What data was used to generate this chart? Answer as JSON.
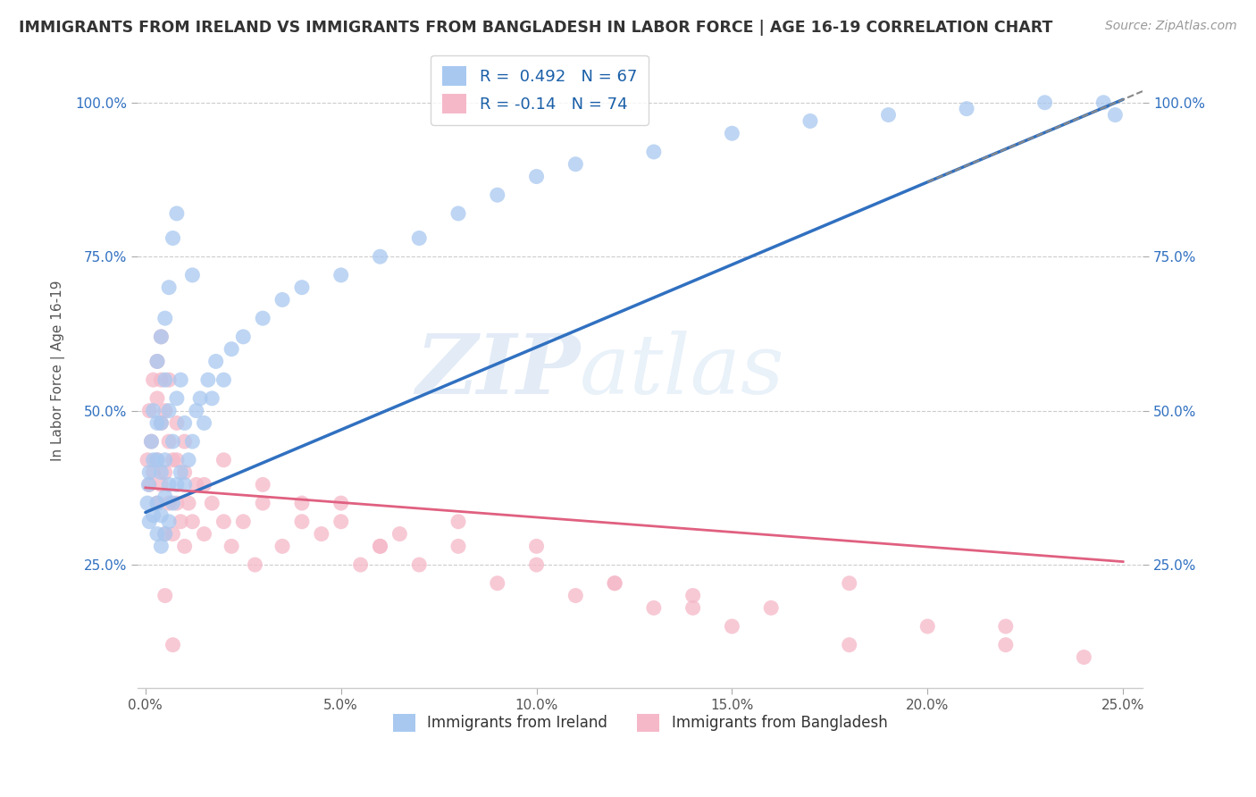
{
  "title": "IMMIGRANTS FROM IRELAND VS IMMIGRANTS FROM BANGLADESH IN LABOR FORCE | AGE 16-19 CORRELATION CHART",
  "source": "Source: ZipAtlas.com",
  "ylabel": "In Labor Force | Age 16-19",
  "xlabel_ireland": "Immigrants from Ireland",
  "xlabel_bangladesh": "Immigrants from Bangladesh",
  "xlim": [
    -0.002,
    0.255
  ],
  "ylim": [
    0.05,
    1.08
  ],
  "xticks": [
    0.0,
    0.05,
    0.1,
    0.15,
    0.2,
    0.25
  ],
  "yticks": [
    0.25,
    0.5,
    0.75,
    1.0
  ],
  "ytick_labels": [
    "25.0%",
    "50.0%",
    "75.0%",
    "100.0%"
  ],
  "xtick_labels": [
    "0.0%",
    "5.0%",
    "10.0%",
    "15.0%",
    "20.0%",
    "25.0%"
  ],
  "ireland_color": "#a8c8f0",
  "bangladesh_color": "#f5b8c8",
  "ireland_R": 0.492,
  "ireland_N": 67,
  "bangladesh_R": -0.14,
  "bangladesh_N": 74,
  "ireland_trend_color": "#3070c0",
  "bangladesh_trend_color": "#e06080",
  "background_color": "#ffffff",
  "grid_color": "#cccccc",
  "watermark_zip": "ZIP",
  "watermark_atlas": "atlas",
  "ireland_scatter_x": [
    0.0005,
    0.0008,
    0.001,
    0.001,
    0.0015,
    0.002,
    0.002,
    0.002,
    0.003,
    0.003,
    0.003,
    0.003,
    0.004,
    0.004,
    0.004,
    0.004,
    0.005,
    0.005,
    0.005,
    0.005,
    0.006,
    0.006,
    0.006,
    0.007,
    0.007,
    0.008,
    0.008,
    0.009,
    0.009,
    0.01,
    0.01,
    0.011,
    0.012,
    0.013,
    0.014,
    0.015,
    0.016,
    0.017,
    0.018,
    0.02,
    0.022,
    0.025,
    0.03,
    0.035,
    0.04,
    0.05,
    0.06,
    0.07,
    0.08,
    0.09,
    0.1,
    0.11,
    0.13,
    0.15,
    0.17,
    0.19,
    0.21,
    0.23,
    0.245,
    0.248,
    0.003,
    0.004,
    0.005,
    0.006,
    0.007,
    0.008,
    0.012
  ],
  "ireland_scatter_y": [
    0.35,
    0.38,
    0.32,
    0.4,
    0.45,
    0.33,
    0.42,
    0.5,
    0.3,
    0.35,
    0.42,
    0.48,
    0.28,
    0.33,
    0.4,
    0.48,
    0.3,
    0.36,
    0.42,
    0.55,
    0.32,
    0.38,
    0.5,
    0.35,
    0.45,
    0.38,
    0.52,
    0.4,
    0.55,
    0.38,
    0.48,
    0.42,
    0.45,
    0.5,
    0.52,
    0.48,
    0.55,
    0.52,
    0.58,
    0.55,
    0.6,
    0.62,
    0.65,
    0.68,
    0.7,
    0.72,
    0.75,
    0.78,
    0.82,
    0.85,
    0.88,
    0.9,
    0.92,
    0.95,
    0.97,
    0.98,
    0.99,
    1.0,
    1.0,
    0.98,
    0.58,
    0.62,
    0.65,
    0.7,
    0.78,
    0.82,
    0.72
  ],
  "bangladesh_scatter_x": [
    0.0005,
    0.001,
    0.001,
    0.0015,
    0.002,
    0.002,
    0.003,
    0.003,
    0.003,
    0.004,
    0.004,
    0.004,
    0.005,
    0.005,
    0.005,
    0.006,
    0.006,
    0.007,
    0.007,
    0.008,
    0.008,
    0.009,
    0.01,
    0.01,
    0.011,
    0.012,
    0.013,
    0.015,
    0.017,
    0.02,
    0.022,
    0.025,
    0.028,
    0.03,
    0.035,
    0.04,
    0.045,
    0.05,
    0.055,
    0.06,
    0.065,
    0.07,
    0.08,
    0.09,
    0.1,
    0.11,
    0.12,
    0.13,
    0.14,
    0.15,
    0.16,
    0.18,
    0.2,
    0.22,
    0.24,
    0.003,
    0.004,
    0.006,
    0.008,
    0.01,
    0.015,
    0.02,
    0.03,
    0.04,
    0.05,
    0.06,
    0.08,
    0.1,
    0.12,
    0.14,
    0.18,
    0.22,
    0.005,
    0.007
  ],
  "bangladesh_scatter_y": [
    0.42,
    0.38,
    0.5,
    0.45,
    0.4,
    0.55,
    0.35,
    0.42,
    0.52,
    0.38,
    0.48,
    0.55,
    0.3,
    0.4,
    0.5,
    0.35,
    0.45,
    0.3,
    0.42,
    0.35,
    0.48,
    0.32,
    0.28,
    0.4,
    0.35,
    0.32,
    0.38,
    0.3,
    0.35,
    0.32,
    0.28,
    0.32,
    0.25,
    0.38,
    0.28,
    0.35,
    0.3,
    0.32,
    0.25,
    0.28,
    0.3,
    0.25,
    0.28,
    0.22,
    0.25,
    0.2,
    0.22,
    0.18,
    0.2,
    0.15,
    0.18,
    0.12,
    0.15,
    0.12,
    0.1,
    0.58,
    0.62,
    0.55,
    0.42,
    0.45,
    0.38,
    0.42,
    0.35,
    0.32,
    0.35,
    0.28,
    0.32,
    0.28,
    0.22,
    0.18,
    0.22,
    0.15,
    0.2,
    0.12
  ]
}
